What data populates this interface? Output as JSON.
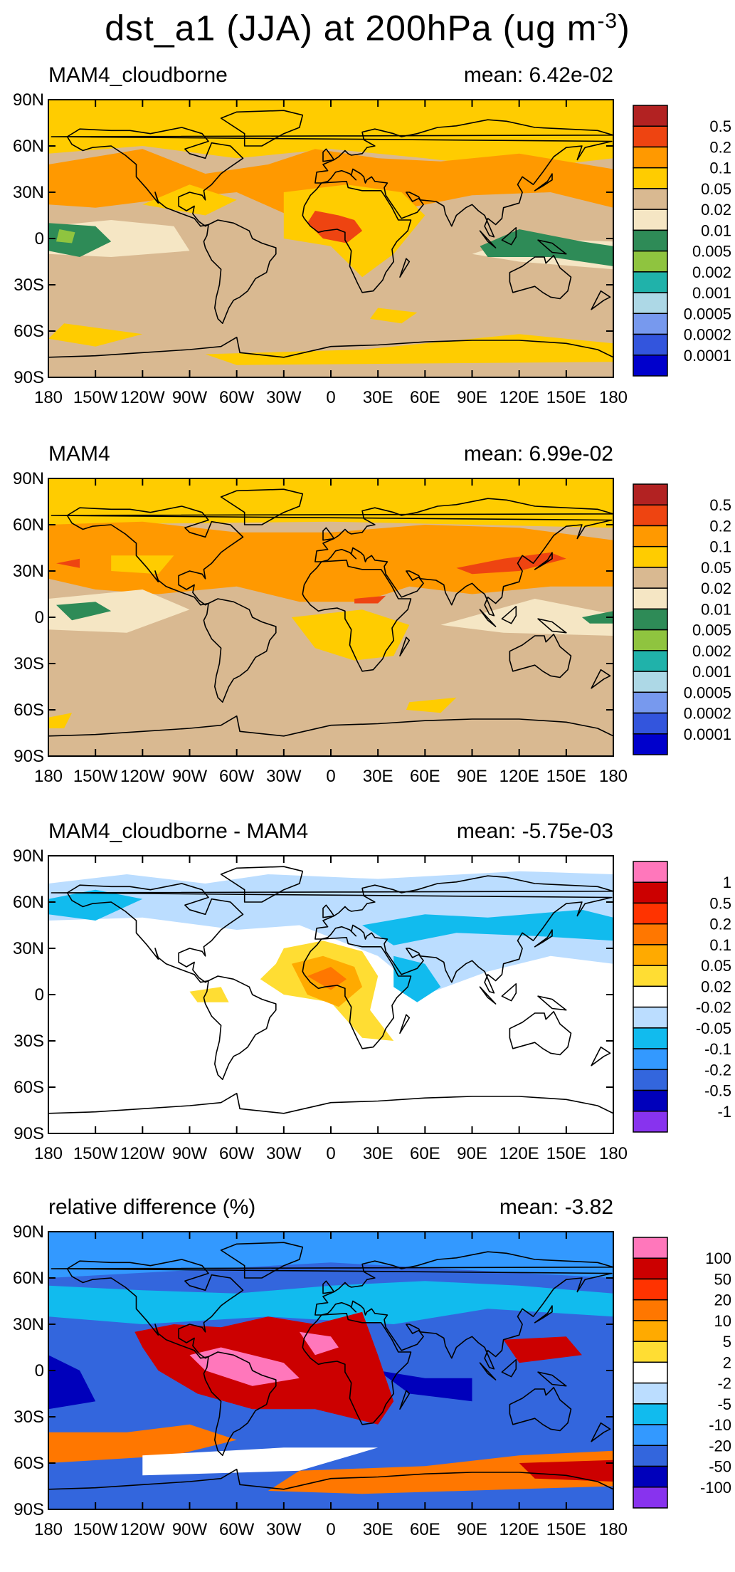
{
  "figure": {
    "title_main": "dst_a1 (JJA) at 200hPa (ug m",
    "title_sup": "-3",
    "title_close": ")"
  },
  "axes": {
    "lat_labels": [
      "90N",
      "60N",
      "30N",
      "0",
      "30S",
      "60S",
      "90S"
    ],
    "lon_labels": [
      "180",
      "150W",
      "120W",
      "90W",
      "60W",
      "30W",
      "0",
      "30E",
      "60E",
      "90E",
      "120E",
      "150E",
      "180"
    ]
  },
  "colors": {
    "conc": [
      "#b22222",
      "#ee4411",
      "#ff9900",
      "#ffcc00",
      "#ffdd00",
      "#d9b991",
      "#f5e6c4",
      "#2e8b57",
      "#8fc43f",
      "#20b2aa",
      "#add8e6",
      "#7799ee",
      "#3355dd",
      "#0000cc"
    ],
    "diff": [
      "#ff77bb",
      "#cc0000",
      "#ff3300",
      "#ff7700",
      "#ffaa00",
      "#ffdd33",
      "#ffffff",
      "#bbddff",
      "#11bbee",
      "#3399ff",
      "#3366dd",
      "#0000bb",
      "#8833ee"
    ]
  },
  "chart_data": [
    {
      "type": "heatmap",
      "title": "MAM4_cloudborne",
      "mean_text": "mean: 6.42e-02",
      "colorbar_levels": [
        "0.5",
        "0.2",
        "0.1",
        "0.05",
        "0.02",
        "0.01",
        "0.005",
        "0.002",
        "0.001",
        "0.0005",
        "0.0002",
        "0.0001"
      ],
      "regions": [
        {
          "name": "north-polar",
          "level": "0.05"
        },
        {
          "name": "n-atlantic-pacific-band",
          "level": "0.1"
        },
        {
          "name": "africa-sahara",
          "level": "0.1"
        },
        {
          "name": "central-africa-core",
          "level": "0.2"
        },
        {
          "name": "tropical-east-pacific",
          "level": "0.005"
        },
        {
          "name": "maritime-continent",
          "level": "0.005"
        },
        {
          "name": "southern-midlatitudes",
          "level": "0.02"
        }
      ]
    },
    {
      "type": "heatmap",
      "title": "MAM4",
      "mean_text": "mean: 6.99e-02",
      "colorbar_levels": [
        "0.5",
        "0.2",
        "0.1",
        "0.05",
        "0.02",
        "0.01",
        "0.005",
        "0.002",
        "0.001",
        "0.0005",
        "0.0002",
        "0.0001"
      ],
      "regions": [
        {
          "name": "north-polar",
          "level": "0.05"
        },
        {
          "name": "northern-band",
          "level": "0.1"
        },
        {
          "name": "east-asia-core",
          "level": "0.2"
        },
        {
          "name": "tropical-east-pacific",
          "level": "0.005"
        },
        {
          "name": "southern-midlatitudes",
          "level": "0.02"
        }
      ]
    },
    {
      "type": "heatmap",
      "title": "MAM4_cloudborne - MAM4",
      "mean_text": "mean: -5.75e-03",
      "colorbar_levels": [
        "1",
        "0.5",
        "0.2",
        "0.1",
        "0.05",
        "0.02",
        "-0.02",
        "-0.05",
        "-0.1",
        "-0.2",
        "-0.5",
        "-1"
      ],
      "regions": [
        {
          "name": "northern-band",
          "level": "-0.05"
        },
        {
          "name": "west-africa-atlantic",
          "level": "0.1"
        },
        {
          "name": "arabian-sea",
          "level": "-0.1"
        }
      ]
    },
    {
      "type": "heatmap",
      "title": "relative difference (%)",
      "mean_text": "mean: -3.82",
      "colorbar_levels": [
        "100",
        "50",
        "20",
        "10",
        "5",
        "2",
        "-2",
        "-5",
        "-10",
        "-20",
        "-50",
        "-100"
      ],
      "regions": [
        {
          "name": "background",
          "level": "-20"
        },
        {
          "name": "tropical-america-atlantic",
          "level": "50"
        },
        {
          "name": "central-core",
          "level": "100"
        },
        {
          "name": "indian-ocean",
          "level": "-50"
        },
        {
          "name": "southern-ocean-band",
          "level": "10"
        }
      ]
    }
  ]
}
